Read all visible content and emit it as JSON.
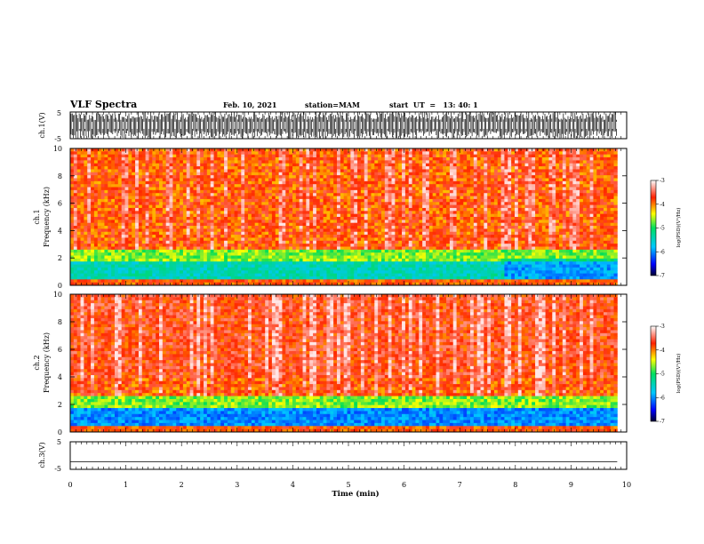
{
  "header": {
    "title": "VLF Spectra",
    "date": "Feb. 10, 2021",
    "station": "station=MAM",
    "start": "start  UT  =   13: 40: 1"
  },
  "chart_data": [
    {
      "type": "line",
      "id": "ch1-waveform",
      "ylabel": "ch.1(V)",
      "ylim": [
        -5,
        5
      ],
      "yticks": [
        "5",
        "-5"
      ],
      "xlim": [
        0,
        10
      ],
      "description_values": {
        "y_low": -5,
        "y_high": 5
      }
    },
    {
      "type": "heatmap",
      "id": "ch1-spectrogram",
      "ylabel_top": "ch.1",
      "ylabel": "Frequency  (kHz)",
      "ylim": [
        0,
        10
      ],
      "yticks": [
        "0",
        "2",
        "4",
        "6",
        "8",
        "10"
      ],
      "xlim": [
        0,
        10
      ],
      "data_xmax": 9.83,
      "colorbar": {
        "label": "log(PSD)(V²/Hz)",
        "range": [
          -7,
          -3
        ],
        "ticks": [
          "-3",
          "-4",
          "-5",
          "-6",
          "-7"
        ]
      }
    },
    {
      "type": "heatmap",
      "id": "ch2-spectrogram",
      "ylabel_top": "ch.2",
      "ylabel": "Frequency  (kHz)",
      "ylim": [
        0,
        10
      ],
      "yticks": [
        "0",
        "2",
        "4",
        "6",
        "8",
        "10"
      ],
      "xlim": [
        0,
        10
      ],
      "data_xmax": 9.83,
      "colorbar": {
        "label": "log(PSD)(V²/Hz)",
        "range": [
          -7,
          -3
        ],
        "ticks": [
          "-3",
          "-4",
          "-5",
          "-6",
          "-7"
        ]
      }
    },
    {
      "type": "line",
      "id": "ch3-waveform",
      "ylabel": "ch.3(V)",
      "ylim": [
        -5,
        5
      ],
      "yticks": [
        "5",
        "-5"
      ],
      "xlim": [
        0,
        10
      ],
      "flat_value": -2.3
    }
  ],
  "x_axis": {
    "label": "Time  (min)",
    "ticks": [
      "0",
      "1",
      "2",
      "3",
      "4",
      "5",
      "6",
      "7",
      "8",
      "9",
      "10"
    ]
  }
}
